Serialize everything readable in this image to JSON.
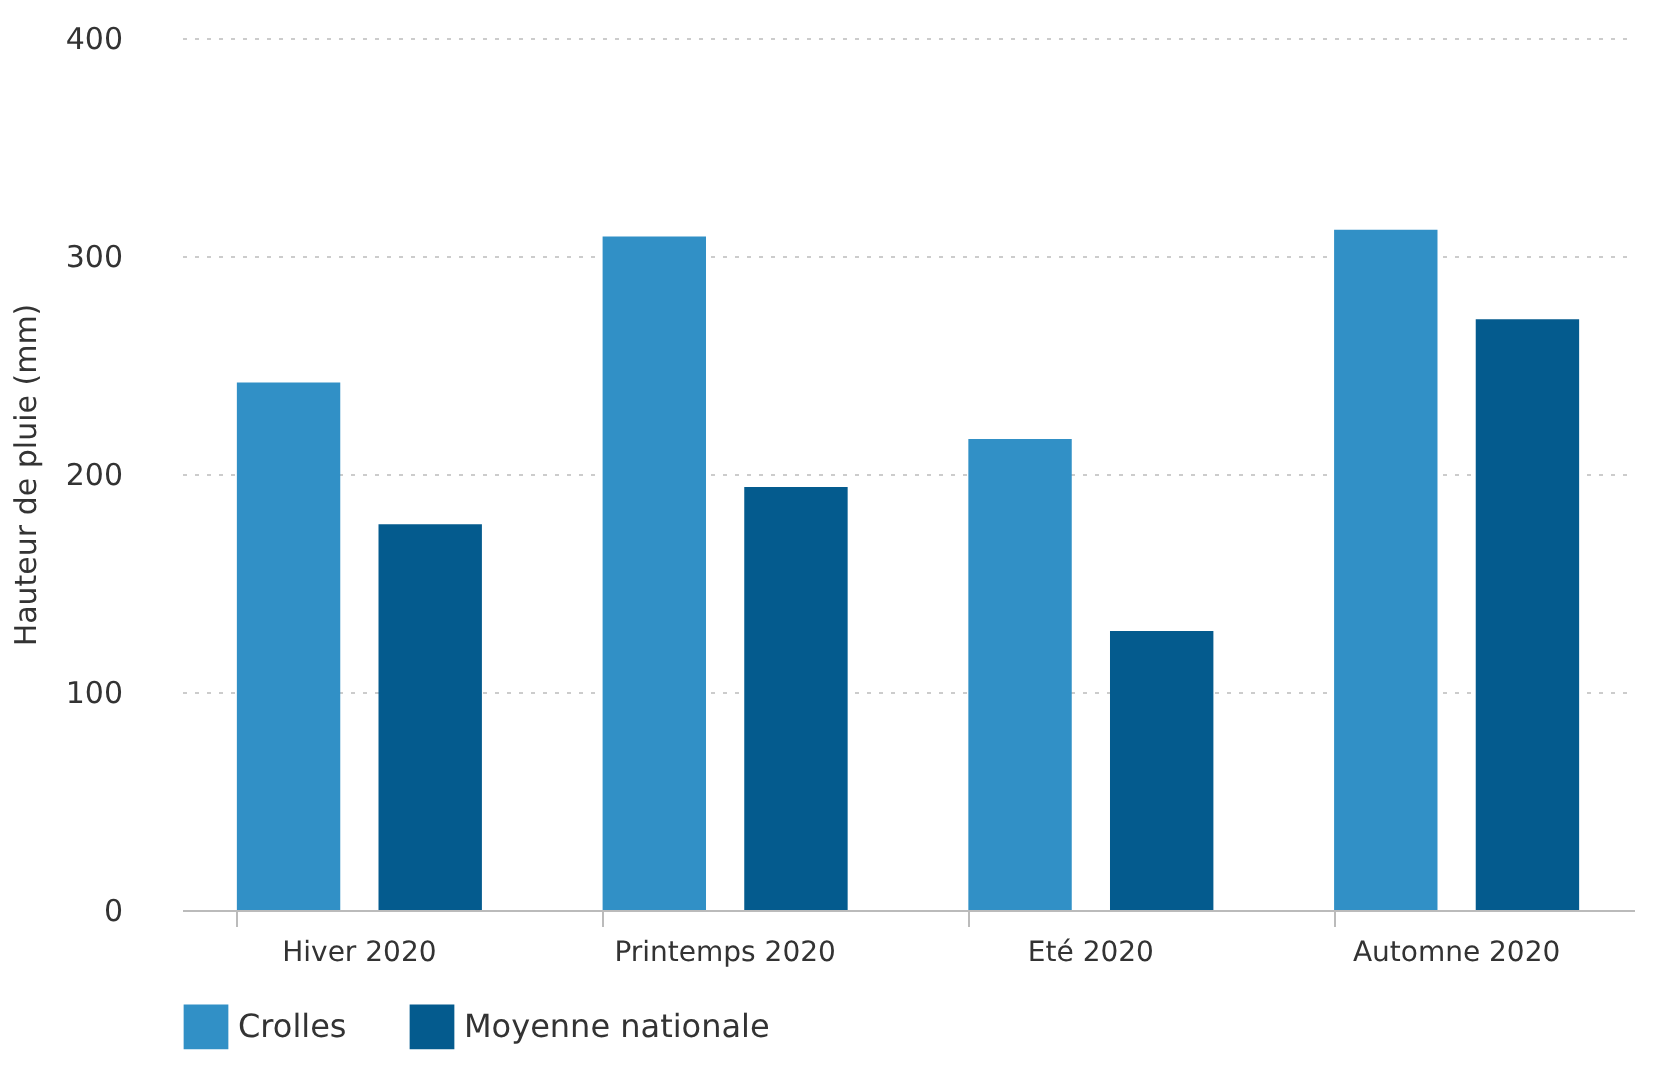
{
  "chart_data": {
    "type": "bar",
    "ylabel": "Hauteur de pluie (mm)",
    "categories": [
      "Hiver 2020",
      "Printemps 2020",
      "Eté 2020",
      "Automne 2020"
    ],
    "series": [
      {
        "name": "Crolles",
        "color": "#3190c6",
        "values": [
          242,
          309,
          216,
          312
        ]
      },
      {
        "name": "Moyenne nationale",
        "color": "#045b8e",
        "values": [
          177,
          194,
          128,
          271
        ]
      }
    ],
    "ylim": [
      0,
      400
    ],
    "yticks": [
      0,
      100,
      200,
      300,
      400
    ],
    "grid": "y",
    "legend": "bottom"
  }
}
